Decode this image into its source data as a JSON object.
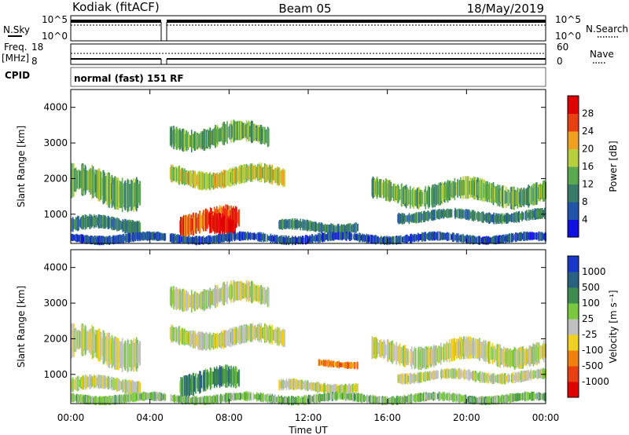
{
  "header": {
    "title": "Kodiak (fitACF)",
    "beam": "Beam 05",
    "date": "18/May/2019"
  },
  "top_panels": {
    "nsky_label": "N.Sky",
    "nsearch_label": "N.Search",
    "nsky_ticks": [
      "10^5",
      "10^0"
    ],
    "nsearch_ticks": [
      "10^5",
      "10^0"
    ],
    "freq_label_1": "Freq.",
    "freq_label_2": "[MHz]",
    "freq_ticks": [
      "18",
      "8"
    ],
    "nave_label": "Nave",
    "nave_ticks": [
      "60",
      "0"
    ],
    "cpid_label": "CPID",
    "cpid_value": "normal (fast) 151 RF"
  },
  "chart_data": [
    {
      "type": "heatmap",
      "name": "power",
      "ylabel": "Slant Range [km]",
      "xlabel": "Time UT",
      "y_ticks": [
        "1000",
        "2000",
        "3000",
        "4000"
      ],
      "x_ticks": [
        "00:00",
        "04:00",
        "08:00",
        "12:00",
        "16:00",
        "20:00",
        "00:00"
      ],
      "ylim": [
        180,
        4500
      ],
      "xlim_hours": [
        0,
        24
      ],
      "colorbar": {
        "label": "Power [dB]",
        "ticks": [
          "4",
          "8",
          "12",
          "16",
          "20",
          "24",
          "28"
        ],
        "colors": [
          "#1010e0",
          "#2255aa",
          "#3a7a6a",
          "#5aa850",
          "#b8d040",
          "#f0a020",
          "#e84010",
          "#e00000"
        ]
      },
      "bands": [
        {
          "t0": 0.0,
          "t1": 3.5,
          "r0": 500,
          "r1": 900,
          "level": 2
        },
        {
          "t0": 0.0,
          "t1": 3.5,
          "r0": 1300,
          "r1": 2200,
          "level": 3
        },
        {
          "t0": 4.8,
          "t1": 10.8,
          "r0": 1800,
          "r1": 2300,
          "level": 4
        },
        {
          "t0": 5.0,
          "t1": 10.0,
          "r0": 2900,
          "r1": 3500,
          "level": 3
        },
        {
          "t0": 5.5,
          "t1": 8.5,
          "r0": 500,
          "r1": 1100,
          "level": 6
        },
        {
          "t0": 7.0,
          "t1": 8.3,
          "r0": 300,
          "r1": 900,
          "level": 7
        },
        {
          "t0": 10.5,
          "t1": 14.5,
          "r0": 500,
          "r1": 800,
          "level": 2
        },
        {
          "t0": 15.2,
          "t1": 24.0,
          "r0": 1300,
          "r1": 1900,
          "level": 3
        },
        {
          "t0": 16.5,
          "t1": 24.0,
          "r0": 800,
          "r1": 1100,
          "level": 2
        },
        {
          "t0": 0.0,
          "t1": 24.0,
          "r0": 200,
          "r1": 450,
          "level": 1
        }
      ]
    },
    {
      "type": "heatmap",
      "name": "velocity",
      "ylabel": "Slant Range [km]",
      "xlabel": "Time UT",
      "y_ticks": [
        "1000",
        "2000",
        "3000",
        "4000"
      ],
      "x_ticks": [
        "00:00",
        "04:00",
        "08:00",
        "12:00",
        "16:00",
        "20:00",
        "00:00"
      ],
      "ylim": [
        180,
        4500
      ],
      "xlim_hours": [
        0,
        24
      ],
      "colorbar": {
        "label": "Velocity [m s⁻¹]",
        "ticks": [
          "1000",
          "500",
          "100",
          "25",
          "-25",
          "-100",
          "-500",
          "-1000"
        ],
        "colors": [
          "#1838c8",
          "#2a6080",
          "#3e8c50",
          "#7ac840",
          "#c0c0c0",
          "#f0d020",
          "#f08010",
          "#e84010",
          "#e00000"
        ]
      },
      "bands": [
        {
          "t0": 0.0,
          "t1": 3.5,
          "r0": 500,
          "r1": 900,
          "level": 4
        },
        {
          "t0": 0.0,
          "t1": 3.5,
          "r0": 1300,
          "r1": 2200,
          "level": 4
        },
        {
          "t0": 4.8,
          "t1": 10.8,
          "r0": 1800,
          "r1": 2300,
          "level": 4
        },
        {
          "t0": 5.0,
          "t1": 10.0,
          "r0": 2900,
          "r1": 3500,
          "level": 4
        },
        {
          "t0": 5.5,
          "t1": 8.5,
          "r0": 500,
          "r1": 1100,
          "level": 2
        },
        {
          "t0": 12.5,
          "t1": 14.5,
          "r0": 1200,
          "r1": 1400,
          "level": 6
        },
        {
          "t0": 10.5,
          "t1": 14.5,
          "r0": 500,
          "r1": 800,
          "level": 4
        },
        {
          "t0": 15.2,
          "t1": 24.0,
          "r0": 1300,
          "r1": 1900,
          "level": 4
        },
        {
          "t0": 16.5,
          "t1": 24.0,
          "r0": 800,
          "r1": 1100,
          "level": 4
        },
        {
          "t0": 0.0,
          "t1": 24.0,
          "r0": 200,
          "r1": 450,
          "level": 3
        }
      ]
    }
  ]
}
